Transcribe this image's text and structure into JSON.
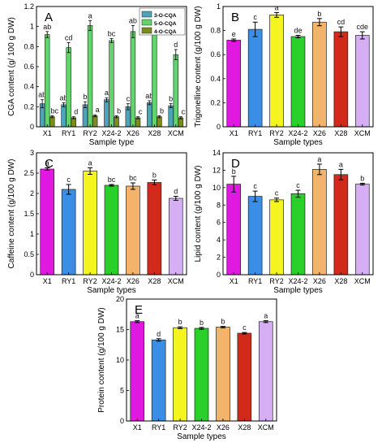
{
  "chart_data": [
    {
      "panel": "A",
      "type": "bar",
      "ylabel": "CGA content (g/ 100 g DW)",
      "xlabel": "Sample type",
      "ylim": [
        0,
        1.2
      ],
      "yticks": [
        "0",
        "0.2",
        "0.4",
        "0.6",
        "0.8",
        "1",
        "1.2"
      ],
      "legend_position": "top-right",
      "categories": [
        "X1",
        "RY1",
        "RY2",
        "X24-2",
        "X26",
        "X28",
        "XCM"
      ],
      "series": [
        {
          "name": "3-O-CQA",
          "color": "#4fa3b8",
          "values": [
            0.23,
            0.22,
            0.22,
            0.27,
            0.2,
            0.24,
            0.21
          ],
          "errors": [
            0.04,
            0.02,
            0.03,
            0.02,
            0.03,
            0.02,
            0.02
          ],
          "labels": [
            "ab",
            "ab",
            "b",
            "a",
            "c",
            "ab",
            "b"
          ]
        },
        {
          "name": "5-O-CQA",
          "color": "#62d36d",
          "values": [
            0.92,
            0.79,
            1.01,
            0.86,
            0.95,
            1.03,
            0.72
          ],
          "errors": [
            0.03,
            0.05,
            0.05,
            0.02,
            0.06,
            0.04,
            0.05
          ],
          "labels": [
            "ab",
            "cd",
            "a",
            "bc",
            "ab",
            "a",
            "d"
          ]
        },
        {
          "name": "4-O-CQA",
          "color": "#7c8a1e",
          "values": [
            0.1,
            0.09,
            0.11,
            0.1,
            0.09,
            0.1,
            0.09
          ],
          "errors": [
            0.01,
            0.01,
            0.01,
            0.01,
            0.01,
            0.01,
            0.01
          ],
          "labels": [
            "bc",
            "d",
            "a",
            "b",
            "c",
            "b",
            "c"
          ]
        }
      ]
    },
    {
      "panel": "B",
      "type": "bar",
      "ylabel": "Trigonelline content (g/100 g DW)",
      "xlabel": "Sample types",
      "ylim": [
        0,
        1
      ],
      "yticks": [
        "0",
        "0.2",
        "0.4",
        "0.6",
        "0.8",
        "1"
      ],
      "categories": [
        "X1",
        "RY1",
        "RY2",
        "X24-2",
        "X26",
        "X28",
        "XCM"
      ],
      "values": [
        0.72,
        0.81,
        0.93,
        0.75,
        0.87,
        0.79,
        0.76
      ],
      "errors": [
        0.01,
        0.06,
        0.02,
        0.01,
        0.03,
        0.04,
        0.03
      ],
      "labels": [
        "e",
        "c",
        "a",
        "de",
        "b",
        "cd",
        "cde"
      ],
      "colors": [
        "#e018e0",
        "#3a8ee6",
        "#f4f420",
        "#2ad02a",
        "#f4b36a",
        "#d22a1a",
        "#d6aef4"
      ]
    },
    {
      "panel": "C",
      "type": "bar",
      "ylabel": "Caffeine content (g/100 g DW)",
      "xlabel": "Sample types",
      "ylim": [
        0,
        3
      ],
      "yticks": [
        "0",
        "0.5",
        "1",
        "1.5",
        "2",
        "2.5",
        "3"
      ],
      "categories": [
        "X1",
        "RY1",
        "RY2",
        "X24-2",
        "X26",
        "X28",
        "XCM"
      ],
      "values": [
        2.6,
        2.1,
        2.55,
        2.2,
        2.18,
        2.27,
        1.88
      ],
      "errors": [
        0.03,
        0.12,
        0.08,
        0.02,
        0.08,
        0.06,
        0.05
      ],
      "labels": [
        "a",
        "c",
        "a",
        "bc",
        "bc",
        "b",
        "d"
      ],
      "colors": [
        "#e018e0",
        "#3a8ee6",
        "#f4f420",
        "#2ad02a",
        "#f4b36a",
        "#d22a1a",
        "#d6aef4"
      ]
    },
    {
      "panel": "D",
      "type": "bar",
      "ylabel": "Lipid content (g/100 g DW)",
      "xlabel": "Sample types",
      "ylim": [
        0,
        14
      ],
      "yticks": [
        "0",
        "2",
        "4",
        "6",
        "8",
        "10",
        "12",
        "14"
      ],
      "categories": [
        "X1",
        "RY1",
        "RY2",
        "X24-2",
        "X26",
        "X28",
        "XCM"
      ],
      "values": [
        10.4,
        9.0,
        8.6,
        9.3,
        12.1,
        11.5,
        10.4
      ],
      "errors": [
        0.9,
        0.6,
        0.2,
        0.4,
        0.6,
        0.6,
        0.1
      ],
      "labels": [
        "b",
        "c",
        "c",
        "c",
        "a",
        "a",
        "b"
      ],
      "colors": [
        "#e018e0",
        "#3a8ee6",
        "#f4f420",
        "#2ad02a",
        "#f4b36a",
        "#d22a1a",
        "#d6aef4"
      ]
    },
    {
      "panel": "E",
      "type": "bar",
      "ylabel": "Protein content (g/100 g DW)",
      "xlabel": "Sample types",
      "ylim": [
        0,
        20
      ],
      "yticks": [
        "0",
        "5",
        "10",
        "15",
        "20"
      ],
      "categories": [
        "X1",
        "RY1",
        "RY2",
        "X24-2",
        "X26",
        "X28",
        "XCM"
      ],
      "values": [
        16.3,
        13.3,
        15.3,
        15.2,
        15.4,
        14.4,
        16.3
      ],
      "errors": [
        0.15,
        0.2,
        0.15,
        0.15,
        0.12,
        0.12,
        0.15
      ],
      "labels": [
        "a",
        "d",
        "b",
        "b",
        "b",
        "c",
        "a"
      ],
      "colors": [
        "#e018e0",
        "#3a8ee6",
        "#f4f420",
        "#2ad02a",
        "#f4b36a",
        "#d22a1a",
        "#d6aef4"
      ]
    }
  ]
}
